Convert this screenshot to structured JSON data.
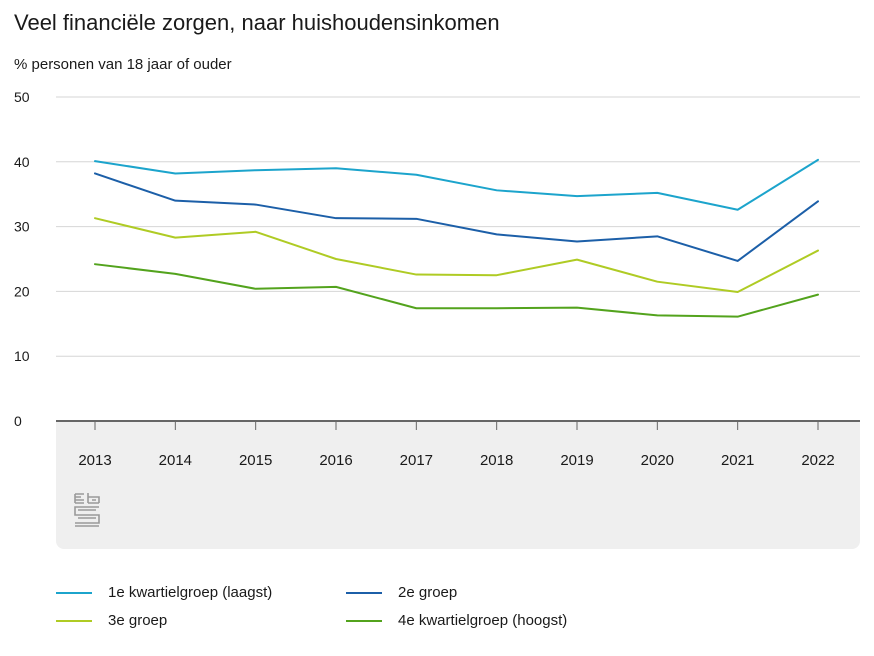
{
  "chart_data": {
    "type": "line",
    "title": "Veel financiële zorgen, naar huishoudensinkomen",
    "ylabel": "% personen van 18 jaar of ouder",
    "xlabel": "",
    "ylim": [
      0,
      50
    ],
    "yticks": [
      0,
      10,
      20,
      30,
      40,
      50
    ],
    "categories": [
      "2013",
      "2014",
      "2015",
      "2016",
      "2017",
      "2018",
      "2019",
      "2020",
      "2021",
      "2022"
    ],
    "series": [
      {
        "name": "1e kwartielgroep (laagst)",
        "color": "#1ca4cc",
        "values": [
          40.1,
          38.2,
          38.7,
          39.0,
          38.0,
          35.6,
          34.7,
          35.2,
          32.6,
          40.3
        ]
      },
      {
        "name": "2e groep",
        "color": "#1c5fa8",
        "values": [
          38.2,
          34.0,
          33.4,
          31.3,
          31.2,
          28.8,
          27.7,
          28.5,
          24.7,
          33.9
        ]
      },
      {
        "name": "3e groep",
        "color": "#afcb24",
        "values": [
          31.3,
          28.3,
          29.2,
          25.0,
          22.6,
          22.5,
          24.9,
          21.5,
          19.9,
          26.3
        ]
      },
      {
        "name": "4e kwartielgroep (hoogst)",
        "color": "#53a31d",
        "values": [
          24.2,
          22.7,
          20.4,
          20.7,
          17.4,
          17.4,
          17.5,
          16.3,
          16.1,
          19.5
        ]
      }
    ],
    "grid": true,
    "legend_position": "bottom"
  },
  "logo": {
    "name": "cbs-logo"
  }
}
